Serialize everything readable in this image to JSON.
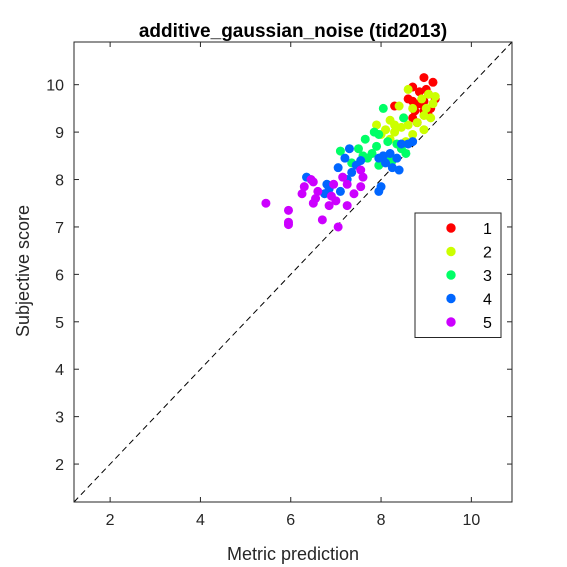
{
  "chart_data": {
    "type": "scatter",
    "title": "additive_gaussian_noise (tid2013)",
    "xlabel": "Metric prediction",
    "ylabel": "Subjective score",
    "xlim": [
      1.2,
      10.9
    ],
    "ylim": [
      1.2,
      10.9
    ],
    "xticks": [
      "2",
      "4",
      "6",
      "8",
      "10"
    ],
    "yticks": [
      "2",
      "3",
      "4",
      "5",
      "6",
      "7",
      "8",
      "9",
      "10"
    ],
    "xtick_values": [
      2,
      4,
      6,
      8,
      10
    ],
    "ytick_values": [
      2,
      3,
      4,
      5,
      6,
      7,
      8,
      9,
      10
    ],
    "grid": false,
    "reference_line": "identity",
    "legend_position": "right",
    "series": [
      {
        "name": "1",
        "color": "#ff0000",
        "points": [
          [
            8.95,
            10.15
          ],
          [
            9.15,
            10.05
          ],
          [
            8.7,
            9.95
          ],
          [
            9.0,
            9.9
          ],
          [
            8.85,
            9.85
          ],
          [
            9.05,
            9.8
          ],
          [
            8.6,
            9.7
          ],
          [
            9.2,
            9.7
          ],
          [
            8.7,
            9.65
          ],
          [
            8.95,
            9.65
          ],
          [
            8.85,
            9.6
          ],
          [
            8.3,
            9.55
          ],
          [
            9.1,
            9.5
          ],
          [
            8.95,
            9.45
          ],
          [
            8.75,
            9.45
          ],
          [
            9.05,
            9.35
          ],
          [
            8.7,
            9.3
          ],
          [
            8.8,
            9.2
          ]
        ]
      },
      {
        "name": "2",
        "color": "#ccff00",
        "points": [
          [
            8.6,
            9.9
          ],
          [
            9.05,
            9.8
          ],
          [
            9.2,
            9.75
          ],
          [
            8.9,
            9.7
          ],
          [
            9.15,
            9.6
          ],
          [
            8.4,
            9.55
          ],
          [
            9.0,
            9.5
          ],
          [
            8.7,
            9.5
          ],
          [
            8.95,
            9.35
          ],
          [
            8.5,
            9.3
          ],
          [
            9.1,
            9.3
          ],
          [
            8.2,
            9.25
          ],
          [
            8.8,
            9.2
          ],
          [
            8.3,
            9.15
          ],
          [
            7.9,
            9.15
          ],
          [
            8.6,
            9.15
          ],
          [
            8.45,
            9.1
          ],
          [
            8.1,
            9.05
          ],
          [
            8.95,
            9.05
          ],
          [
            8.3,
            9.0
          ],
          [
            8.0,
            8.95
          ],
          [
            8.7,
            8.95
          ],
          [
            8.2,
            8.85
          ],
          [
            8.55,
            8.8
          ]
        ]
      },
      {
        "name": "3",
        "color": "#00ff66",
        "points": [
          [
            8.05,
            9.5
          ],
          [
            8.5,
            9.3
          ],
          [
            7.85,
            9.0
          ],
          [
            7.95,
            8.95
          ],
          [
            7.65,
            8.85
          ],
          [
            8.15,
            8.8
          ],
          [
            8.35,
            8.75
          ],
          [
            7.9,
            8.7
          ],
          [
            8.45,
            8.65
          ],
          [
            7.5,
            8.65
          ],
          [
            7.1,
            8.6
          ],
          [
            7.8,
            8.55
          ],
          [
            8.55,
            8.55
          ],
          [
            7.6,
            8.5
          ],
          [
            8.1,
            8.45
          ],
          [
            7.7,
            8.45
          ],
          [
            8.25,
            8.4
          ],
          [
            7.35,
            8.35
          ],
          [
            7.95,
            8.3
          ]
        ]
      },
      {
        "name": "4",
        "color": "#0066ff",
        "points": [
          [
            8.7,
            8.8
          ],
          [
            8.6,
            8.75
          ],
          [
            8.45,
            8.75
          ],
          [
            7.3,
            8.65
          ],
          [
            8.2,
            8.55
          ],
          [
            8.05,
            8.5
          ],
          [
            7.95,
            8.45
          ],
          [
            8.35,
            8.45
          ],
          [
            7.2,
            8.45
          ],
          [
            7.55,
            8.4
          ],
          [
            8.1,
            8.35
          ],
          [
            7.45,
            8.3
          ],
          [
            8.25,
            8.25
          ],
          [
            7.05,
            8.25
          ],
          [
            8.4,
            8.2
          ],
          [
            7.35,
            8.15
          ],
          [
            6.35,
            8.05
          ],
          [
            7.25,
            8.0
          ],
          [
            6.8,
            7.9
          ],
          [
            8.0,
            7.85
          ],
          [
            6.85,
            7.8
          ],
          [
            7.1,
            7.75
          ],
          [
            6.75,
            7.7
          ],
          [
            7.95,
            7.75
          ]
        ]
      },
      {
        "name": "5",
        "color": "#cc00ff",
        "points": [
          [
            7.55,
            8.2
          ],
          [
            7.15,
            8.05
          ],
          [
            7.6,
            8.05
          ],
          [
            6.45,
            8.0
          ],
          [
            6.5,
            7.95
          ],
          [
            7.25,
            7.9
          ],
          [
            6.95,
            7.9
          ],
          [
            6.3,
            7.85
          ],
          [
            7.55,
            7.85
          ],
          [
            6.6,
            7.75
          ],
          [
            7.4,
            7.7
          ],
          [
            6.25,
            7.7
          ],
          [
            6.9,
            7.65
          ],
          [
            6.55,
            7.6
          ],
          [
            7.0,
            7.55
          ],
          [
            6.5,
            7.5
          ],
          [
            5.45,
            7.5
          ],
          [
            6.85,
            7.45
          ],
          [
            7.25,
            7.45
          ],
          [
            5.95,
            7.35
          ],
          [
            6.7,
            7.15
          ],
          [
            5.95,
            7.1
          ],
          [
            5.95,
            7.05
          ],
          [
            7.05,
            7.0
          ]
        ]
      }
    ]
  }
}
